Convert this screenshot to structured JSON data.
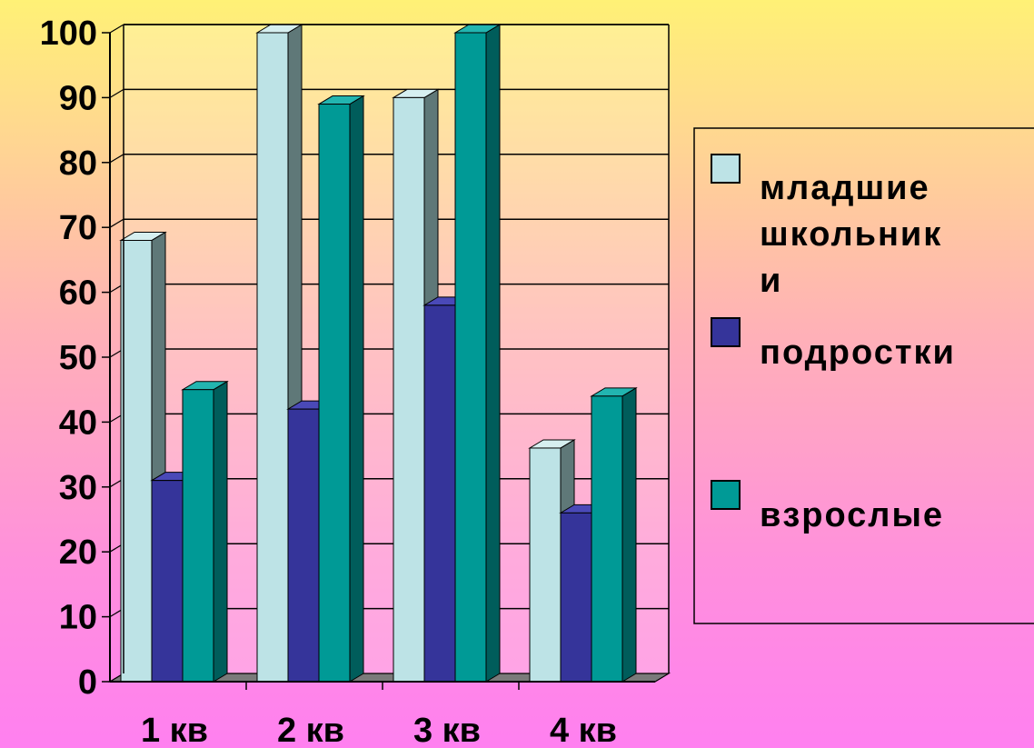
{
  "chart_data": {
    "type": "bar",
    "categories": [
      "1 кв",
      "2 кв",
      "3 кв",
      "4 кв"
    ],
    "series": [
      {
        "name": "младшие школьники",
        "values": [
          68,
          100,
          90,
          36
        ]
      },
      {
        "name": "подростки",
        "values": [
          31,
          42,
          58,
          26
        ]
      },
      {
        "name": "взрослые",
        "values": [
          45,
          89,
          100,
          44
        ]
      }
    ],
    "legend_lines": [
      [
        "младшие",
        "школьник",
        "и"
      ],
      [
        "подростки"
      ],
      [
        "взрослые"
      ]
    ],
    "yticks": [
      "0",
      "10",
      "20",
      "30",
      "40",
      "50",
      "60",
      "70",
      "80",
      "90",
      "100"
    ],
    "ylim": [
      0,
      100
    ],
    "grid": true,
    "legend_position": "right",
    "style": "3d-clustered-column"
  },
  "colors": {
    "series": [
      "#bde3e6",
      "#35349a",
      "#009a96"
    ],
    "series_side": [
      "#5f7878",
      "#1c1b60",
      "#005d5b"
    ],
    "series_top": [
      "#d6eff0",
      "#4a49b8",
      "#22b5b0"
    ],
    "axis": "#000000",
    "floor": "#7a7a7a",
    "plot_bg": "#fffde0"
  }
}
